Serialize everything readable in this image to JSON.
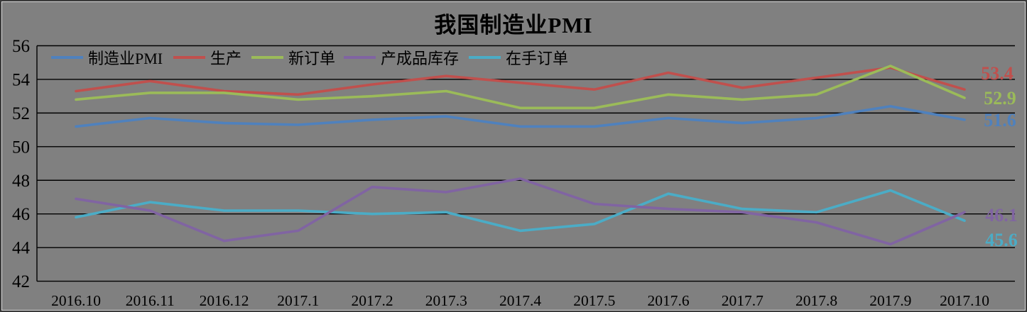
{
  "title": "我国制造业PMI",
  "background_color": "#808080",
  "chart_data": {
    "type": "line",
    "title": "我国制造业PMI",
    "categories": [
      "2016.10",
      "2016.11",
      "2016.12",
      "2017.1",
      "2017.2",
      "2017.3",
      "2017.4",
      "2017.5",
      "2017.6",
      "2017.7",
      "2017.8",
      "2017.9",
      "2017.10"
    ],
    "series": [
      {
        "name": "制造业PMI",
        "color": "#4F81BD",
        "end_label": "51.6",
        "values": [
          51.2,
          51.7,
          51.4,
          51.3,
          51.6,
          51.8,
          51.2,
          51.2,
          51.7,
          51.4,
          51.7,
          52.4,
          51.6
        ]
      },
      {
        "name": "生产",
        "color": "#C0504D",
        "end_label": "53.4",
        "values": [
          53.3,
          53.9,
          53.3,
          53.1,
          53.7,
          54.2,
          53.8,
          53.4,
          54.4,
          53.5,
          54.1,
          54.7,
          53.4
        ]
      },
      {
        "name": "新订单",
        "color": "#9BBB59",
        "end_label": "52.9",
        "values": [
          52.8,
          53.2,
          53.2,
          52.8,
          53.0,
          53.3,
          52.3,
          52.3,
          53.1,
          52.8,
          53.1,
          54.8,
          52.9
        ]
      },
      {
        "name": "产成品库存",
        "color": "#8064A2",
        "end_label": "46.1",
        "values": [
          46.9,
          46.2,
          44.4,
          45.0,
          47.6,
          47.3,
          48.1,
          46.6,
          46.3,
          46.1,
          45.5,
          44.2,
          46.1
        ]
      },
      {
        "name": "在手订单",
        "color": "#4BACC6",
        "end_label": "45.6",
        "values": [
          45.8,
          46.7,
          46.2,
          46.2,
          46.0,
          46.1,
          45.0,
          45.4,
          47.2,
          46.3,
          46.1,
          47.4,
          45.6
        ]
      }
    ],
    "yticks": [
      56,
      54,
      52,
      50,
      48,
      46,
      44,
      42
    ],
    "ylim": [
      42,
      56
    ],
    "grid": true,
    "gridline_color": "#000000",
    "legend_position": "top-left-inside"
  }
}
